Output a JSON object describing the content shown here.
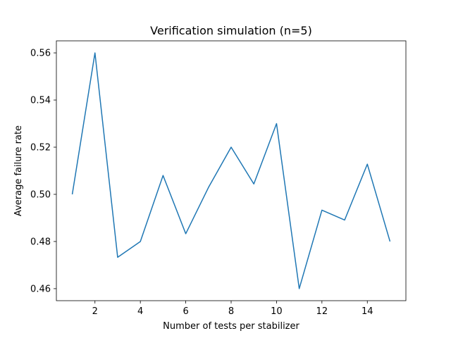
{
  "chart_data": {
    "type": "line",
    "title": "Verification simulation (n=5)",
    "xlabel": "Number of tests per stabilizer",
    "ylabel": "Average failure rate",
    "xlim": [
      0.3,
      15.7
    ],
    "ylim": [
      0.4549,
      0.5651
    ],
    "xticks": [
      2,
      4,
      6,
      8,
      10,
      12,
      14
    ],
    "yticks": [
      0.46,
      0.48,
      0.5,
      0.52,
      0.54,
      0.56
    ],
    "grid": false,
    "line_color": "#1f77b4",
    "series": [
      {
        "x": [
          1,
          2,
          3,
          4,
          5,
          6,
          7,
          8,
          9,
          10,
          11,
          12,
          13,
          14,
          15
        ],
        "values": [
          0.5,
          0.56,
          0.4733,
          0.48,
          0.508,
          0.4833,
          0.5029,
          0.52,
          0.5044,
          0.53,
          0.46,
          0.4933,
          0.4891,
          0.5128,
          0.48
        ]
      }
    ]
  }
}
